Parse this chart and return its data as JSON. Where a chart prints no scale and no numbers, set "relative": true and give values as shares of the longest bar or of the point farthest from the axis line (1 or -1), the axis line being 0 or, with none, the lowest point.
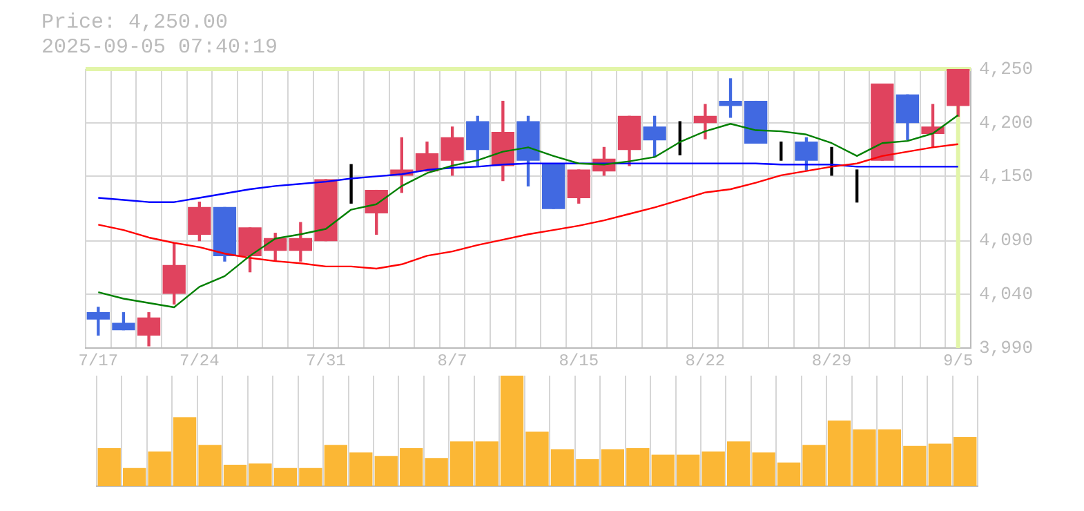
{
  "chart_data": [
    {
      "type": "candlestick",
      "title": "Price: 4,250.00",
      "subtitle": "2025-09-05 07:40:19",
      "categories": [
        "7/17",
        null,
        null,
        null,
        "7/24",
        null,
        null,
        null,
        null,
        "7/31",
        null,
        null,
        null,
        null,
        "8/7",
        null,
        null,
        null,
        null,
        "8/15",
        null,
        null,
        null,
        null,
        "8/22",
        null,
        null,
        null,
        null,
        "8/29",
        null,
        null,
        null,
        null,
        "9/5"
      ],
      "ohlc": [
        [
          4023,
          4028,
          4002,
          4017
        ],
        [
          4013,
          4023,
          4007,
          4007
        ],
        [
          4002,
          4023,
          3992,
          4018
        ],
        [
          4041,
          4088,
          4031,
          4067
        ],
        [
          4096,
          4126,
          4090,
          4121
        ],
        [
          4121,
          4121,
          4071,
          4076
        ],
        [
          4076,
          4102,
          4061,
          4102
        ],
        [
          4081,
          4097,
          4071,
          4092
        ],
        [
          4081,
          4107,
          4071,
          4092
        ],
        [
          4090,
          4147,
          4090,
          4147
        ],
        [
          4151,
          4161,
          4125,
          4151
        ],
        [
          4116,
          4137,
          4096,
          4137
        ],
        [
          4151,
          4186,
          4135,
          4156
        ],
        [
          4155,
          4182,
          4155,
          4171
        ],
        [
          4165,
          4196,
          4151,
          4186
        ],
        [
          4201,
          4206,
          4160,
          4175
        ],
        [
          4160,
          4220,
          4146,
          4191
        ],
        [
          4201,
          4206,
          4141,
          4165
        ],
        [
          4162,
          4162,
          4120,
          4120
        ],
        [
          4130,
          4156,
          4125,
          4156
        ],
        [
          4155,
          4177,
          4151,
          4166
        ],
        [
          4175,
          4206,
          4160,
          4206
        ],
        [
          4196,
          4206,
          4168,
          4184
        ],
        [
          4185,
          4201,
          4170,
          4185
        ],
        [
          4200,
          4217,
          4185,
          4206
        ],
        [
          4220,
          4241,
          4205,
          4216
        ],
        [
          4220,
          4220,
          4181,
          4181
        ],
        [
          4176,
          4182,
          4165,
          4176
        ],
        [
          4182,
          4186,
          4156,
          4165
        ],
        [
          4165,
          4177,
          4151,
          4165
        ],
        [
          4152,
          4156,
          4126,
          4152
        ],
        [
          4165,
          4236,
          4165,
          4236
        ],
        [
          4226,
          4226,
          4184,
          4200
        ],
        [
          4190,
          4217,
          4177,
          4196
        ],
        [
          4216,
          4250,
          4206,
          4250
        ]
      ],
      "colors": [
        "#4169e1",
        "#4169e1",
        "#e0435e",
        "#e0435e",
        "#e0435e",
        "#4169e1",
        "#e0435e",
        "#e0435e",
        "#e0435e",
        "#e0435e",
        "#000000",
        "#e0435e",
        "#e0435e",
        "#e0435e",
        "#e0435e",
        "#4169e1",
        "#e0435e",
        "#4169e1",
        "#4169e1",
        "#e0435e",
        "#e0435e",
        "#e0435e",
        "#4169e1",
        "#000000",
        "#e0435e",
        "#4169e1",
        "#4169e1",
        "#000000",
        "#4169e1",
        "#000000",
        "#000000",
        "#e0435e",
        "#4169e1",
        "#e0435e",
        "#e0435e"
      ],
      "series": [
        {
          "type": "line",
          "color": "#008000",
          "values": [
            4042,
            4036,
            4032,
            4028,
            4047,
            4057,
            4076,
            4092,
            4096,
            4101,
            4119,
            4124,
            4141,
            4153,
            4160,
            4165,
            4173,
            4177,
            4169,
            4162,
            4161,
            4164,
            4168,
            4182,
            4192,
            4199,
            4193,
            4192,
            4189,
            4181,
            4169,
            4181,
            4183,
            4190,
            4207
          ]
        },
        {
          "type": "line",
          "color": "#ff0000",
          "values": [
            4105,
            4100,
            4093,
            4088,
            4084,
            4078,
            4074,
            4071,
            4069,
            4066,
            4066,
            4064,
            4068,
            4076,
            4080,
            4086,
            4091,
            4096,
            4100,
            4104,
            4109,
            4115,
            4121,
            4128,
            4135,
            4138,
            4144,
            4151,
            4155,
            4159,
            4162,
            4169,
            4173,
            4177,
            4180
          ]
        },
        {
          "type": "line",
          "color": "#0000ff",
          "values": [
            4130,
            4128,
            4126,
            4126,
            4130,
            4134,
            4138,
            4141,
            4143,
            4145,
            4148,
            4150,
            4152,
            4156,
            4158,
            4159,
            4161,
            4162,
            4162,
            4162,
            4162,
            4162,
            4162,
            4162,
            4162,
            4162,
            4162,
            4161,
            4161,
            4161,
            4159,
            4159,
            4159,
            4159,
            4159
          ]
        }
      ],
      "ylim": [
        3990,
        4250
      ],
      "yticks": [
        {
          "value": 3990,
          "label": "3,990"
        },
        {
          "value": 4040,
          "label": "4,040"
        },
        {
          "value": 4090,
          "label": "4,090"
        },
        {
          "value": 4150,
          "label": "4,150"
        },
        {
          "value": 4200,
          "label": "4,200"
        },
        {
          "value": 4250,
          "label": "4,250"
        }
      ],
      "ref_lines": [
        {
          "axis": "y",
          "value": 4250,
          "color": "#e2f5a8"
        },
        {
          "axis": "x",
          "value": "9/5",
          "color": "#e2f5a8"
        }
      ],
      "grid": true,
      "legend": false,
      "marker": "none",
      "line_style": "solid"
    },
    {
      "type": "bar",
      "categories": [
        null,
        null,
        null,
        null,
        null,
        null,
        null,
        null,
        null,
        null,
        null,
        null,
        null,
        null,
        null,
        null,
        null,
        null,
        null,
        null,
        null,
        null,
        null,
        null,
        null,
        null,
        null,
        null,
        null,
        null,
        null,
        null,
        null,
        null,
        null
      ],
      "values": [
        0.34,
        0.16,
        0.31,
        0.62,
        0.37,
        0.19,
        0.2,
        0.16,
        0.16,
        0.37,
        0.3,
        0.27,
        0.34,
        0.25,
        0.4,
        0.4,
        1,
        0.49,
        0.33,
        0.24,
        0.33,
        0.34,
        0.28,
        0.28,
        0.31,
        0.4,
        0.3,
        0.21,
        0.37,
        0.59,
        0.51,
        0.51,
        0.36,
        0.38,
        0.44
      ],
      "color": "#fbb735",
      "relative": true,
      "grid": "x",
      "tick_labels": false,
      "legend": false
    }
  ]
}
